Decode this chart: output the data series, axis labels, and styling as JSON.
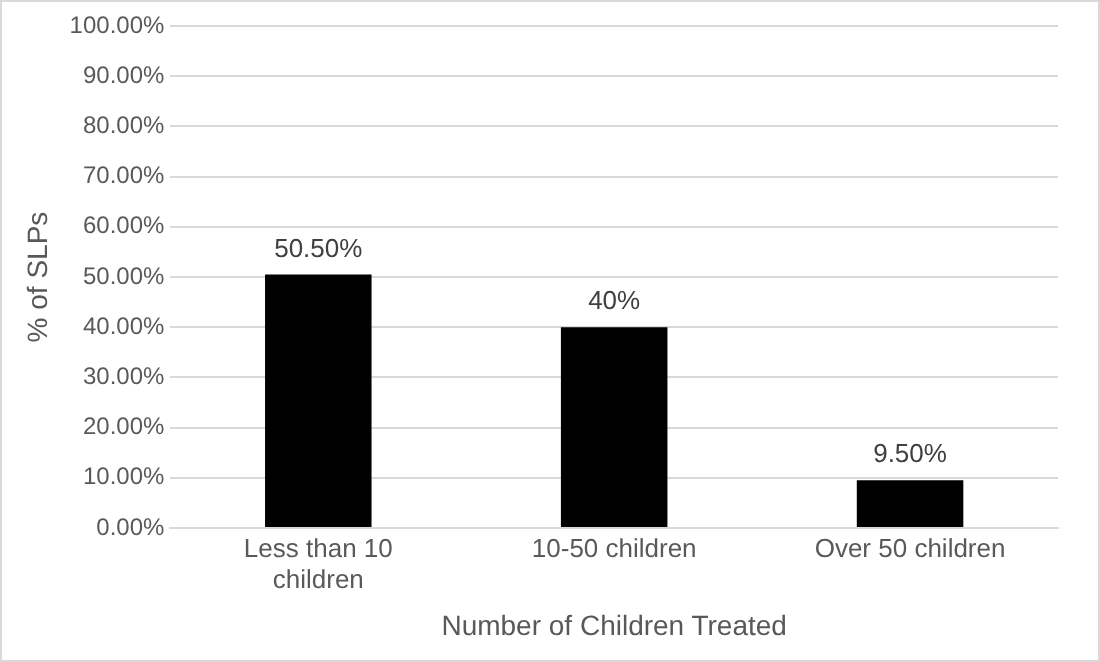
{
  "chart_data": {
    "type": "bar",
    "xlabel": "Number of Children Treated",
    "ylabel": "% of SLPs",
    "categories": [
      "Less than 10 children",
      "10-50 children",
      "Over 50 children"
    ],
    "values": [
      50.5,
      40,
      9.5
    ],
    "color": "#000000",
    "value_labels": [
      "50.50%",
      "40%",
      "9.50%"
    ],
    "ylim": [
      0,
      100
    ],
    "yticks": [
      {
        "value": 0,
        "label": "0.00%"
      },
      {
        "value": 10,
        "label": "10.00%"
      },
      {
        "value": 20,
        "label": "20.00%"
      },
      {
        "value": 30,
        "label": "30.00%"
      },
      {
        "value": 40,
        "label": "40.00%"
      },
      {
        "value": 50,
        "label": "50.00%"
      },
      {
        "value": 60,
        "label": "60.00%"
      },
      {
        "value": 70,
        "label": "70.00%"
      },
      {
        "value": 80,
        "label": "80.00%"
      },
      {
        "value": 90,
        "label": "90.00%"
      },
      {
        "value": 100,
        "label": "100.00%"
      }
    ],
    "grid": "y",
    "legend": false
  }
}
